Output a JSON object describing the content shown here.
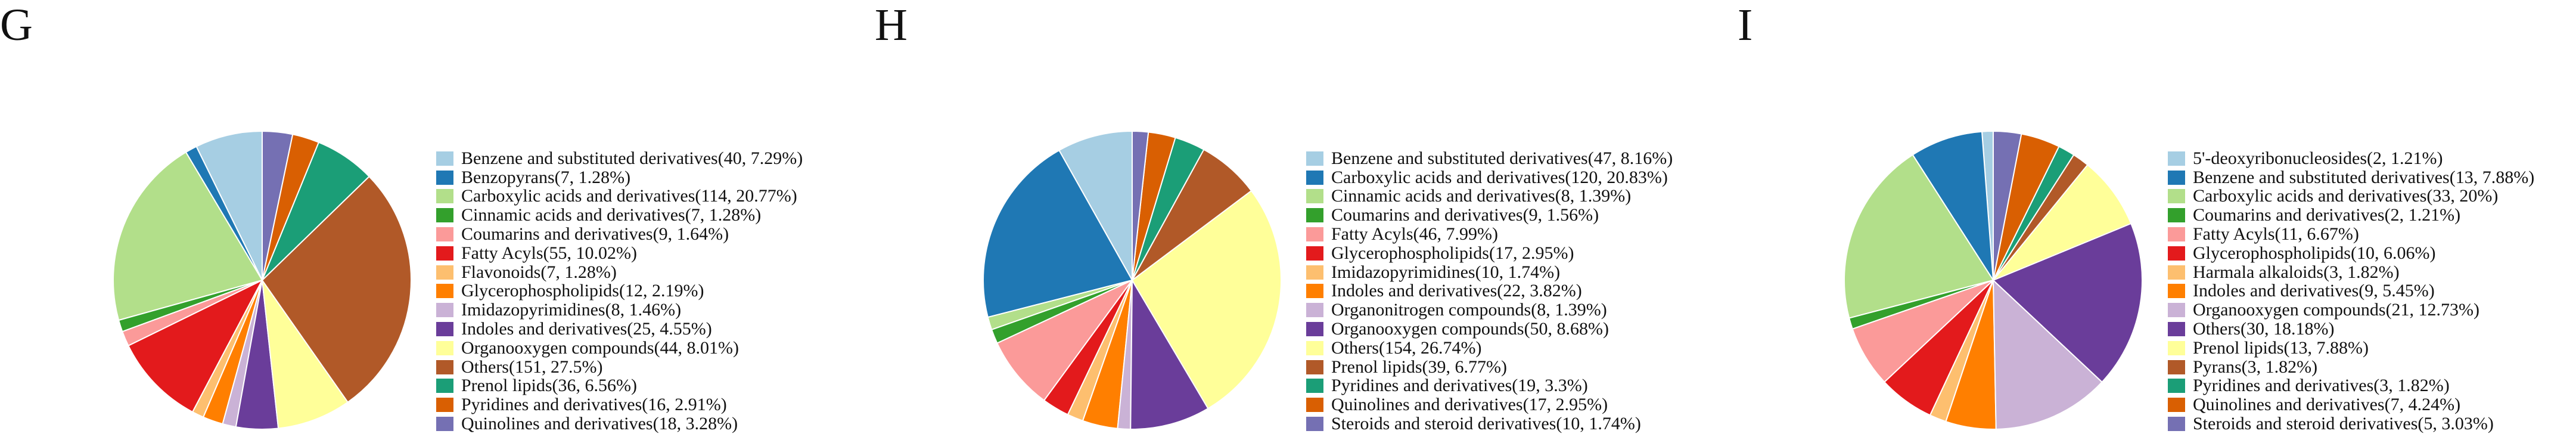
{
  "chart_data": [
    {
      "type": "pie",
      "panel_label": "G",
      "slices": [
        {
          "label": "Benzene and substituted derivatives",
          "count": 40,
          "percent": 7.29
        },
        {
          "label": "Benzopyrans",
          "count": 7,
          "percent": 1.28
        },
        {
          "label": "Carboxylic acids and derivatives",
          "count": 114,
          "percent": 20.77
        },
        {
          "label": "Cinnamic acids and derivatives",
          "count": 7,
          "percent": 1.28
        },
        {
          "label": "Coumarins and derivatives",
          "count": 9,
          "percent": 1.64
        },
        {
          "label": "Fatty Acyls",
          "count": 55,
          "percent": 10.02
        },
        {
          "label": "Flavonoids",
          "count": 7,
          "percent": 1.28
        },
        {
          "label": "Glycerophospholipids",
          "count": 12,
          "percent": 2.19
        },
        {
          "label": "Imidazopyrimidines",
          "count": 8,
          "percent": 1.46
        },
        {
          "label": "Indoles and derivatives",
          "count": 25,
          "percent": 4.55
        },
        {
          "label": "Organooxygen compounds",
          "count": 44,
          "percent": 8.01
        },
        {
          "label": "Others",
          "count": 151,
          "percent": 27.5
        },
        {
          "label": "Prenol lipids",
          "count": 36,
          "percent": 6.56
        },
        {
          "label": "Pyridines and derivatives",
          "count": 16,
          "percent": 2.91
        },
        {
          "label": "Quinolines and derivatives",
          "count": 18,
          "percent": 3.28
        }
      ],
      "legend_text": [
        "Benzene and substituted derivatives(40, 7.29%)",
        "Benzopyrans(7, 1.28%)",
        "Carboxylic acids and derivatives(114, 20.77%)",
        "Cinnamic acids and derivatives(7, 1.28%)",
        "Coumarins and derivatives(9, 1.64%)",
        "Fatty Acyls(55, 10.02%)",
        "Flavonoids(7, 1.28%)",
        "Glycerophospholipids(12, 2.19%)",
        "Imidazopyrimidines(8, 1.46%)",
        "Indoles and derivatives(25, 4.55%)",
        "Organooxygen compounds(44, 8.01%)",
        "Others(151, 27.5%)",
        "Prenol lipids(36, 6.56%)",
        "Pyridines and derivatives(16, 2.91%)",
        "Quinolines and derivatives(18, 3.28%)"
      ],
      "colors": [
        "#a6cee3",
        "#1f78b4",
        "#b2df8a",
        "#33a02c",
        "#fb9a99",
        "#e31a1c",
        "#fdbf6f",
        "#ff7f00",
        "#cab2d6",
        "#6a3d9a",
        "#ffff99",
        "#b15928",
        "#1b9e77",
        "#d95f02",
        "#7570b3"
      ],
      "legend_position": "right",
      "start_angle": "12 o'clock, counter-clockwise"
    },
    {
      "type": "pie",
      "panel_label": "H",
      "slices": [
        {
          "label": "Benzene and substituted derivatives",
          "count": 47,
          "percent": 8.16
        },
        {
          "label": "Carboxylic acids and derivatives",
          "count": 120,
          "percent": 20.83
        },
        {
          "label": "Cinnamic acids and derivatives",
          "count": 8,
          "percent": 1.39
        },
        {
          "label": "Coumarins and derivatives",
          "count": 9,
          "percent": 1.56
        },
        {
          "label": "Fatty Acyls",
          "count": 46,
          "percent": 7.99
        },
        {
          "label": "Glycerophospholipids",
          "count": 17,
          "percent": 2.95
        },
        {
          "label": "Imidazopyrimidines",
          "count": 10,
          "percent": 1.74
        },
        {
          "label": "Indoles and derivatives",
          "count": 22,
          "percent": 3.82
        },
        {
          "label": "Organonitrogen compounds",
          "count": 8,
          "percent": 1.39
        },
        {
          "label": "Organooxygen compounds",
          "count": 50,
          "percent": 8.68
        },
        {
          "label": "Others",
          "count": 154,
          "percent": 26.74
        },
        {
          "label": "Prenol lipids",
          "count": 39,
          "percent": 6.77
        },
        {
          "label": "Pyridines and derivatives",
          "count": 19,
          "percent": 3.3
        },
        {
          "label": "Quinolines and derivatives",
          "count": 17,
          "percent": 2.95
        },
        {
          "label": "Steroids and steroid derivatives",
          "count": 10,
          "percent": 1.74
        }
      ],
      "legend_text": [
        "Benzene and substituted derivatives(47, 8.16%)",
        "Carboxylic acids and derivatives(120, 20.83%)",
        "Cinnamic acids and derivatives(8, 1.39%)",
        "Coumarins and derivatives(9, 1.56%)",
        "Fatty Acyls(46, 7.99%)",
        "Glycerophospholipids(17, 2.95%)",
        "Imidazopyrimidines(10, 1.74%)",
        "Indoles and derivatives(22, 3.82%)",
        "Organonitrogen compounds(8, 1.39%)",
        "Organooxygen compounds(50, 8.68%)",
        "Others(154, 26.74%)",
        "Prenol lipids(39, 6.77%)",
        "Pyridines and derivatives(19, 3.3%)",
        "Quinolines and derivatives(17, 2.95%)",
        "Steroids and steroid derivatives(10, 1.74%)"
      ],
      "colors": [
        "#a6cee3",
        "#1f78b4",
        "#b2df8a",
        "#33a02c",
        "#fb9a99",
        "#e31a1c",
        "#fdbf6f",
        "#ff7f00",
        "#cab2d6",
        "#6a3d9a",
        "#ffff99",
        "#b15928",
        "#1b9e77",
        "#d95f02",
        "#7570b3"
      ],
      "legend_position": "right",
      "start_angle": "12 o'clock, counter-clockwise"
    },
    {
      "type": "pie",
      "panel_label": "I",
      "slices": [
        {
          "label": "5'-deoxyribonucleosides",
          "count": 2,
          "percent": 1.21
        },
        {
          "label": "Benzene and substituted derivatives",
          "count": 13,
          "percent": 7.88
        },
        {
          "label": "Carboxylic acids and derivatives",
          "count": 33,
          "percent": 20
        },
        {
          "label": "Coumarins and derivatives",
          "count": 2,
          "percent": 1.21
        },
        {
          "label": "Fatty Acyls",
          "count": 11,
          "percent": 6.67
        },
        {
          "label": "Glycerophospholipids",
          "count": 10,
          "percent": 6.06
        },
        {
          "label": "Harmala alkaloids",
          "count": 3,
          "percent": 1.82
        },
        {
          "label": "Indoles and derivatives",
          "count": 9,
          "percent": 5.45
        },
        {
          "label": "Organooxygen compounds",
          "count": 21,
          "percent": 12.73
        },
        {
          "label": "Others",
          "count": 30,
          "percent": 18.18
        },
        {
          "label": "Prenol lipids",
          "count": 13,
          "percent": 7.88
        },
        {
          "label": "Pyrans",
          "count": 3,
          "percent": 1.82
        },
        {
          "label": "Pyridines and derivatives",
          "count": 3,
          "percent": 1.82
        },
        {
          "label": "Quinolines and derivatives",
          "count": 7,
          "percent": 4.24
        },
        {
          "label": "Steroids and steroid derivatives",
          "count": 5,
          "percent": 3.03
        }
      ],
      "legend_text": [
        "5'-deoxyribonucleosides(2, 1.21%)",
        "Benzene and substituted derivatives(13, 7.88%)",
        "Carboxylic acids and derivatives(33, 20%)",
        "Coumarins and derivatives(2, 1.21%)",
        "Fatty Acyls(11, 6.67%)",
        "Glycerophospholipids(10, 6.06%)",
        "Harmala alkaloids(3, 1.82%)",
        "Indoles and derivatives(9, 5.45%)",
        "Organooxygen compounds(21, 12.73%)",
        "Others(30, 18.18%)",
        "Prenol lipids(13, 7.88%)",
        "Pyrans(3, 1.82%)",
        "Pyridines and derivatives(3, 1.82%)",
        "Quinolines and derivatives(7, 4.24%)",
        "Steroids and steroid derivatives(5, 3.03%)"
      ],
      "colors": [
        "#a6cee3",
        "#1f78b4",
        "#b2df8a",
        "#33a02c",
        "#fb9a99",
        "#e31a1c",
        "#fdbf6f",
        "#ff7f00",
        "#cab2d6",
        "#6a3d9a",
        "#ffff99",
        "#b15928",
        "#1b9e77",
        "#d95f02",
        "#7570b3"
      ],
      "legend_position": "right",
      "start_angle": "12 o'clock, counter-clockwise"
    }
  ]
}
